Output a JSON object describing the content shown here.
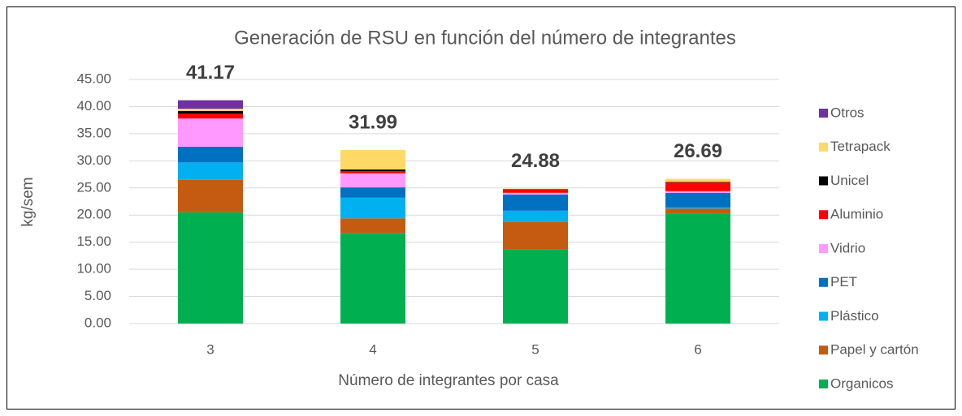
{
  "chart_data": {
    "type": "bar",
    "stacked": true,
    "title": "Generación de RSU en función del número de integrantes",
    "x_label": "Número de integrantes por casa",
    "y_label": "kg/sem",
    "categories": [
      "3",
      "4",
      "5",
      "6"
    ],
    "series": [
      {
        "name": "Organicos",
        "color": "#00b050",
        "values": [
          20.5,
          16.7,
          13.7,
          20.2
        ]
      },
      {
        "name": "Papel y cartón",
        "color": "#c55a11",
        "values": [
          6.0,
          2.7,
          5.0,
          1.0
        ]
      },
      {
        "name": "Plástico",
        "color": "#00b0f0",
        "values": [
          3.2,
          3.8,
          2.1,
          0.2
        ]
      },
      {
        "name": "PET",
        "color": "#0070c0",
        "values": [
          2.9,
          1.9,
          3.0,
          2.7
        ]
      },
      {
        "name": "Vidrio",
        "color": "#ff99ff",
        "values": [
          5.2,
          2.6,
          0.3,
          0.3
        ]
      },
      {
        "name": "Aluminio",
        "color": "#ff0000",
        "values": [
          0.9,
          0.4,
          0.7,
          1.6
        ]
      },
      {
        "name": "Unicel",
        "color": "#000000",
        "values": [
          0.5,
          0.3,
          0,
          0.1
        ]
      },
      {
        "name": "Tetrapack",
        "color": "#ffd966",
        "values": [
          0.4,
          3.59,
          0.08,
          0.59
        ]
      },
      {
        "name": "Otros",
        "color": "#7030a0",
        "values": [
          1.57,
          0,
          0,
          0
        ]
      }
    ],
    "totals": [
      41.17,
      31.99,
      24.88,
      26.69
    ],
    "ylim": [
      0,
      45
    ],
    "yticks": [
      {
        "value": 0,
        "label": "0.00"
      },
      {
        "value": 5,
        "label": "5.00"
      },
      {
        "value": 10,
        "label": "10.00"
      },
      {
        "value": 15,
        "label": "15.00"
      },
      {
        "value": 20,
        "label": "20.00"
      },
      {
        "value": 25,
        "label": "25.00"
      },
      {
        "value": 30,
        "label": "30.00"
      },
      {
        "value": 35,
        "label": "35.00"
      },
      {
        "value": 40,
        "label": "40.00"
      },
      {
        "value": 45,
        "label": "45.00"
      }
    ],
    "grid": true,
    "legend": "right"
  }
}
